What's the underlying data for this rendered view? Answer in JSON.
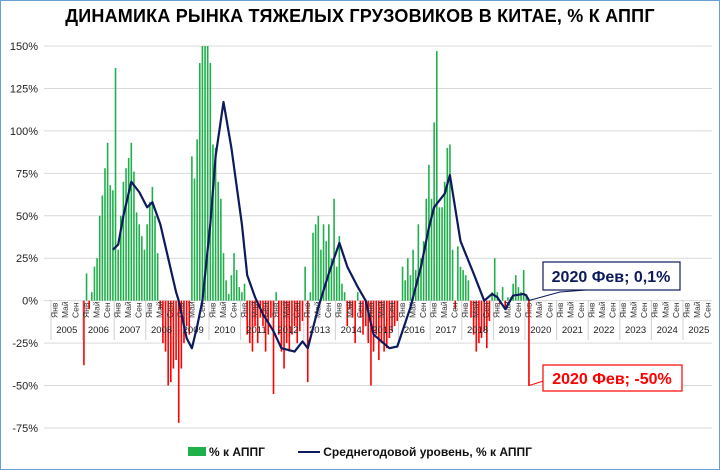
{
  "title": "ДИНАМИКА РЫНКА ТЯЖЕЛЫХ ГРУЗОВИКОВ В КИТАЕ, % К АППГ",
  "colors": {
    "positive": "#20b04b",
    "negative": "#ff0000",
    "line": "#0d1a5c",
    "grid": "#d9d9d9",
    "callout_line": "#0d1a5c",
    "callout_bar": "#ff0000"
  },
  "legend": {
    "bars": "% к АППГ",
    "line": "Среднегодовой уровень, % к АППГ"
  },
  "annotations": {
    "line_callout": "2020 Фев; 0,1%",
    "bar_callout": "2020 Фев; -50%"
  },
  "chart_data": {
    "type": "bar+line",
    "title": "ДИНАМИКА РЫНКА ТЯЖЕЛЫХ ГРУЗОВИКОВ В КИТАЕ, % К АППГ",
    "ylim": [
      -75,
      150
    ],
    "yticks": [
      150,
      125,
      100,
      75,
      50,
      25,
      0,
      -25,
      -50,
      -75
    ],
    "ytick_labels": [
      "150%",
      "125%",
      "100%",
      "75%",
      "50%",
      "25%",
      "0%",
      "-25%",
      "-50%",
      "-75%"
    ],
    "years": [
      "2005",
      "2006",
      "2007",
      "2008",
      "2009",
      "2010",
      "2011",
      "2012",
      "2013",
      "2014",
      "2015",
      "2016",
      "2017",
      "2018",
      "2019",
      "2020",
      "2021",
      "2022",
      "2023",
      "2024",
      "2025"
    ],
    "month_tick_labels": [
      "Янв",
      "Май",
      "Сен"
    ],
    "grid": true,
    "legend_position": "bottom",
    "bars": {
      "name": "% к АППГ",
      "start": "2005-01",
      "values": [
        0,
        0,
        0,
        0,
        0,
        0,
        0,
        0,
        0,
        0,
        0,
        0,
        -38,
        16,
        -5,
        5,
        20,
        25,
        50,
        62,
        78,
        93,
        68,
        65,
        137,
        30,
        50,
        70,
        78,
        84,
        93,
        76,
        52,
        45,
        38,
        30,
        45,
        58,
        67,
        50,
        28,
        -5,
        -25,
        -30,
        -50,
        -48,
        -40,
        -35,
        -72,
        -40,
        -25,
        -15,
        -20,
        85,
        72,
        95,
        140,
        150,
        150,
        150,
        140,
        92,
        90,
        70,
        60,
        28,
        12,
        4,
        15,
        28,
        18,
        8,
        5,
        10,
        -20,
        -25,
        -30,
        -15,
        -25,
        -10,
        -15,
        -30,
        -20,
        -10,
        -55,
        5,
        -20,
        -30,
        -40,
        -25,
        -30,
        -20,
        -15,
        -25,
        -18,
        -12,
        20,
        -48,
        5,
        40,
        45,
        50,
        30,
        45,
        35,
        45,
        25,
        60,
        20,
        38,
        10,
        5,
        -15,
        -5,
        -10,
        -25,
        5,
        -10,
        -20,
        -15,
        -25,
        -50,
        -30,
        -20,
        -35,
        -25,
        -30,
        -28,
        -22,
        -18,
        -15,
        -12,
        0,
        20,
        12,
        25,
        15,
        30,
        18,
        45,
        25,
        35,
        60,
        80,
        60,
        105,
        147,
        55,
        55,
        70,
        90,
        92,
        30,
        -5,
        32,
        20,
        18,
        15,
        12,
        -10,
        -20,
        -30,
        -25,
        -22,
        -18,
        -28,
        -12,
        5,
        25,
        5,
        -2,
        8,
        -5,
        2,
        2,
        10,
        15,
        8,
        5,
        18,
        4,
        -50
      ]
    },
    "line": {
      "name": "Среднегодовой уровень, % к АППГ",
      "points": [
        [
          "2006-12",
          30
        ],
        [
          "2007-02",
          33
        ],
        [
          "2007-04",
          50
        ],
        [
          "2007-07",
          70
        ],
        [
          "2007-10",
          64
        ],
        [
          "2008-01",
          55
        ],
        [
          "2008-03",
          58
        ],
        [
          "2008-06",
          45
        ],
        [
          "2008-09",
          25
        ],
        [
          "2008-12",
          5
        ],
        [
          "2009-01",
          0
        ],
        [
          "2009-04",
          -22
        ],
        [
          "2009-06",
          -28
        ],
        [
          "2009-08",
          -15
        ],
        [
          "2009-10",
          0
        ],
        [
          "2010-01",
          45
        ],
        [
          "2010-03",
          85
        ],
        [
          "2010-06",
          117
        ],
        [
          "2010-09",
          90
        ],
        [
          "2011-01",
          45
        ],
        [
          "2011-03",
          15
        ],
        [
          "2011-06",
          2
        ],
        [
          "2011-09",
          -8
        ],
        [
          "2012-01",
          -18
        ],
        [
          "2012-04",
          -28
        ],
        [
          "2012-09",
          -30
        ],
        [
          "2012-12",
          -24
        ],
        [
          "2013-02",
          -28
        ],
        [
          "2013-06",
          -4
        ],
        [
          "2013-10",
          16
        ],
        [
          "2013-12",
          25
        ],
        [
          "2014-02",
          34
        ],
        [
          "2014-05",
          20
        ],
        [
          "2014-09",
          8
        ],
        [
          "2014-12",
          0
        ],
        [
          "2015-03",
          -20
        ],
        [
          "2015-09",
          -28
        ],
        [
          "2015-12",
          -27
        ],
        [
          "2016-05",
          -4
        ],
        [
          "2016-09",
          20
        ],
        [
          "2016-12",
          43
        ],
        [
          "2017-02",
          55
        ],
        [
          "2017-06",
          63
        ],
        [
          "2017-08",
          74
        ],
        [
          "2017-12",
          35
        ],
        [
          "2018-05",
          16
        ],
        [
          "2018-09",
          0
        ],
        [
          "2018-12",
          4
        ],
        [
          "2019-02",
          2
        ],
        [
          "2019-05",
          -5
        ],
        [
          "2019-08",
          3
        ],
        [
          "2019-12",
          4
        ],
        [
          "2020-01",
          3
        ],
        [
          "2020-02",
          0.1
        ]
      ]
    }
  }
}
